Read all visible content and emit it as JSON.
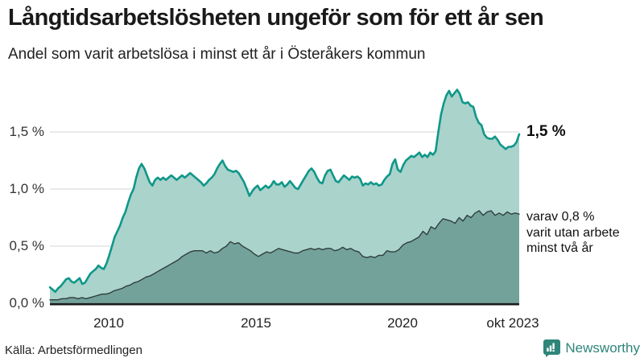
{
  "header": {
    "title": "Långtidsarbetslösheten ungeför som för ett år sen",
    "subtitle": "Andel som varit arbetslösa i minst ett år i Österåkers kommun"
  },
  "chart_data": {
    "type": "area",
    "title": "Långtidsarbetslösheten ungeför som för ett år sen",
    "subtitle": "Andel som varit arbetslösa i minst ett år i Österåkers kommun",
    "unit": "%",
    "x_start": 2008.0,
    "x_end": 2023.83,
    "ylim": [
      0,
      1.9
    ],
    "grid": true,
    "x_ticks": [
      {
        "label": "2010",
        "year": 2010
      },
      {
        "label": "2015",
        "year": 2015
      },
      {
        "label": "2020",
        "year": 2020
      },
      {
        "label": "okt 2023",
        "year": 2023.83
      }
    ],
    "y_ticks": [
      {
        "label": "1,5 %",
        "value": 1.5
      },
      {
        "label": "1,0 %",
        "value": 1.0
      },
      {
        "label": "0,5 %",
        "value": 0.5
      },
      {
        "label": "0,0 %",
        "value": 0.0
      }
    ],
    "series": [
      {
        "name": "Andel arbetslösa minst ett år",
        "end_label": "1,5 %",
        "stroke": "#0f9789",
        "fill": "#aad3cb",
        "values": [
          0.14,
          0.12,
          0.1,
          0.13,
          0.15,
          0.18,
          0.21,
          0.22,
          0.19,
          0.18,
          0.2,
          0.22,
          0.17,
          0.18,
          0.22,
          0.26,
          0.28,
          0.3,
          0.33,
          0.31,
          0.3,
          0.35,
          0.42,
          0.5,
          0.58,
          0.63,
          0.68,
          0.75,
          0.8,
          0.88,
          0.95,
          1.0,
          1.1,
          1.18,
          1.22,
          1.18,
          1.12,
          1.06,
          1.03,
          1.08,
          1.1,
          1.08,
          1.1,
          1.08,
          1.1,
          1.12,
          1.1,
          1.08,
          1.1,
          1.12,
          1.1,
          1.12,
          1.14,
          1.12,
          1.1,
          1.08,
          1.06,
          1.03,
          1.05,
          1.08,
          1.1,
          1.13,
          1.18,
          1.22,
          1.25,
          1.2,
          1.17,
          1.16,
          1.15,
          1.16,
          1.14,
          1.1,
          1.06,
          1.0,
          0.94,
          0.98,
          1.01,
          1.03,
          0.99,
          1.01,
          1.03,
          1.01,
          1.03,
          1.07,
          1.04,
          1.04,
          1.06,
          1.02,
          1.04,
          1.07,
          1.04,
          1.01,
          1.0,
          1.04,
          1.08,
          1.12,
          1.16,
          1.18,
          1.15,
          1.1,
          1.06,
          1.05,
          1.12,
          1.16,
          1.17,
          1.12,
          1.07,
          1.06,
          1.09,
          1.12,
          1.1,
          1.08,
          1.11,
          1.1,
          1.11,
          1.09,
          1.03,
          1.05,
          1.04,
          1.06,
          1.04,
          1.05,
          1.03,
          1.04,
          1.08,
          1.11,
          1.13,
          1.22,
          1.26,
          1.17,
          1.15,
          1.21,
          1.25,
          1.27,
          1.29,
          1.28,
          1.3,
          1.32,
          1.28,
          1.3,
          1.28,
          1.32,
          1.3,
          1.33,
          1.5,
          1.65,
          1.75,
          1.82,
          1.86,
          1.81,
          1.84,
          1.87,
          1.83,
          1.76,
          1.75,
          1.76,
          1.73,
          1.72,
          1.63,
          1.58,
          1.56,
          1.48,
          1.45,
          1.44,
          1.44,
          1.46,
          1.43,
          1.39,
          1.37,
          1.35,
          1.37,
          1.37,
          1.38,
          1.41,
          1.48
        ]
      },
      {
        "name": "varav utan arbete minst två år",
        "end_label": "0,8 %",
        "stroke": "#2f3e3c",
        "fill": "#73a29b",
        "values": [
          0.03,
          0.03,
          0.03,
          0.04,
          0.04,
          0.05,
          0.05,
          0.04,
          0.05,
          0.04,
          0.05,
          0.06,
          0.07,
          0.08,
          0.08,
          0.09,
          0.11,
          0.12,
          0.13,
          0.15,
          0.16,
          0.18,
          0.19,
          0.21,
          0.23,
          0.24,
          0.26,
          0.28,
          0.3,
          0.32,
          0.34,
          0.36,
          0.38,
          0.41,
          0.43,
          0.45,
          0.46,
          0.46,
          0.46,
          0.44,
          0.46,
          0.44,
          0.45,
          0.48,
          0.5,
          0.54,
          0.52,
          0.53,
          0.5,
          0.48,
          0.46,
          0.43,
          0.41,
          0.43,
          0.45,
          0.44,
          0.46,
          0.48,
          0.47,
          0.46,
          0.45,
          0.44,
          0.44,
          0.46,
          0.47,
          0.48,
          0.47,
          0.48,
          0.47,
          0.48,
          0.48,
          0.46,
          0.47,
          0.49,
          0.47,
          0.48,
          0.46,
          0.45,
          0.41,
          0.4,
          0.41,
          0.4,
          0.42,
          0.42,
          0.46,
          0.45,
          0.45,
          0.47,
          0.51,
          0.53,
          0.54,
          0.56,
          0.58,
          0.63,
          0.6,
          0.67,
          0.65,
          0.7,
          0.74,
          0.73,
          0.72,
          0.7,
          0.75,
          0.72,
          0.77,
          0.75,
          0.79,
          0.81,
          0.77,
          0.8,
          0.81,
          0.77,
          0.79,
          0.77,
          0.8,
          0.78,
          0.79,
          0.78
        ]
      }
    ],
    "annotations": {
      "end_label": "1,5 %",
      "varav_line1": "varav 0,8 %",
      "varav_line2": "varit utan arbete",
      "varav_line3": "minst två år"
    }
  },
  "colors": {
    "accent_teal": "#0f9789",
    "light_fill": "#aad3cb",
    "dark_fill": "#73a29b",
    "dark_stroke": "#2f3e3c",
    "grid": "#e4e4e8",
    "axis": "#1c1c1c",
    "brand_teal": "#2e8579"
  },
  "footer": {
    "source": "Källa: Arbetsförmedlingen",
    "brand": "Newsworthy"
  }
}
